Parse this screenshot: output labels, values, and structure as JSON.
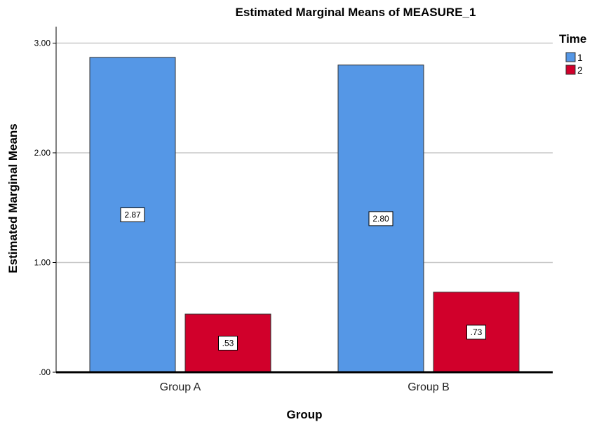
{
  "chart_data": {
    "type": "bar",
    "title": "Estimated Marginal Means of MEASURE_1",
    "xlabel": "Group",
    "ylabel": "Estimated Marginal Means",
    "categories": [
      "Group A",
      "Group B"
    ],
    "series": [
      {
        "name": "1",
        "values": [
          2.87,
          2.8
        ],
        "labels": [
          "2.87",
          "2.80"
        ],
        "color": "#5597e6"
      },
      {
        "name": "2",
        "values": [
          0.53,
          0.73
        ],
        "labels": [
          ".53",
          ".73"
        ],
        "color": "#d1002b"
      }
    ],
    "ylim": [
      0,
      3.15
    ],
    "yticks": [
      0,
      1,
      2,
      3
    ],
    "ytick_labels": [
      ".00",
      "1.00",
      "2.00",
      "3.00"
    ],
    "grid": true,
    "legend": {
      "title": "Time",
      "placement": "top-right"
    },
    "colors": {
      "grid": "#c8c8c8",
      "bar_border": "#333333",
      "axis": "#000000"
    }
  }
}
